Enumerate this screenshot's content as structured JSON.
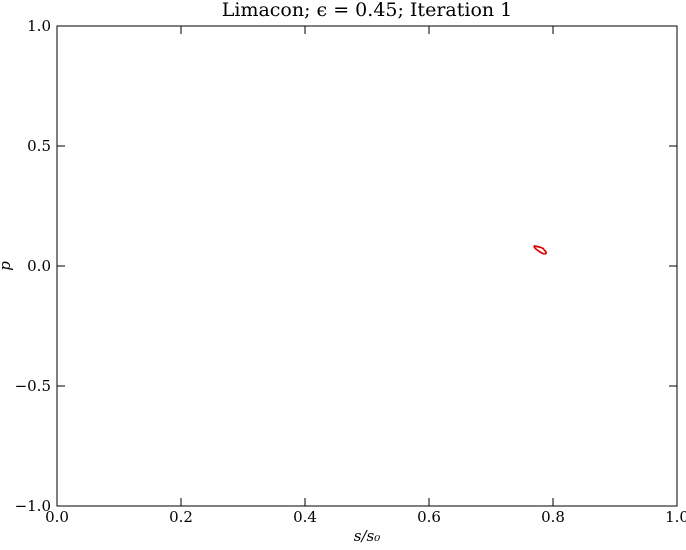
{
  "chart_data": {
    "type": "scatter",
    "title": "Limacon; ϵ = 0.45; Iteration 1",
    "xlabel": "s/s₀",
    "ylabel": "p",
    "xlim": [
      0.0,
      1.0
    ],
    "ylim": [
      -1.0,
      1.0
    ],
    "x_ticks": [
      0.0,
      0.2,
      0.4,
      0.6,
      0.8,
      1.0
    ],
    "x_tick_labels": [
      "0.0",
      "0.2",
      "0.4",
      "0.6",
      "0.8",
      "1.0"
    ],
    "y_ticks": [
      -1.0,
      -0.5,
      0.0,
      0.5,
      1.0
    ],
    "y_tick_labels": [
      "−1.0",
      "−0.5",
      "0.0",
      "0.5",
      "1.0"
    ],
    "grid": false,
    "series": [
      {
        "color": "#dd0000",
        "marker": "closed-curve",
        "x": [
          0.77,
          0.774,
          0.779,
          0.7835,
          0.7875,
          0.789,
          0.788,
          0.784,
          0.78,
          0.776,
          0.772,
          0.77,
          0.77
        ],
        "y": [
          0.083,
          0.0815,
          0.0785,
          0.074,
          0.062,
          0.056,
          0.051,
          0.0515,
          0.057,
          0.064,
          0.072,
          0.078,
          0.083
        ]
      }
    ]
  }
}
